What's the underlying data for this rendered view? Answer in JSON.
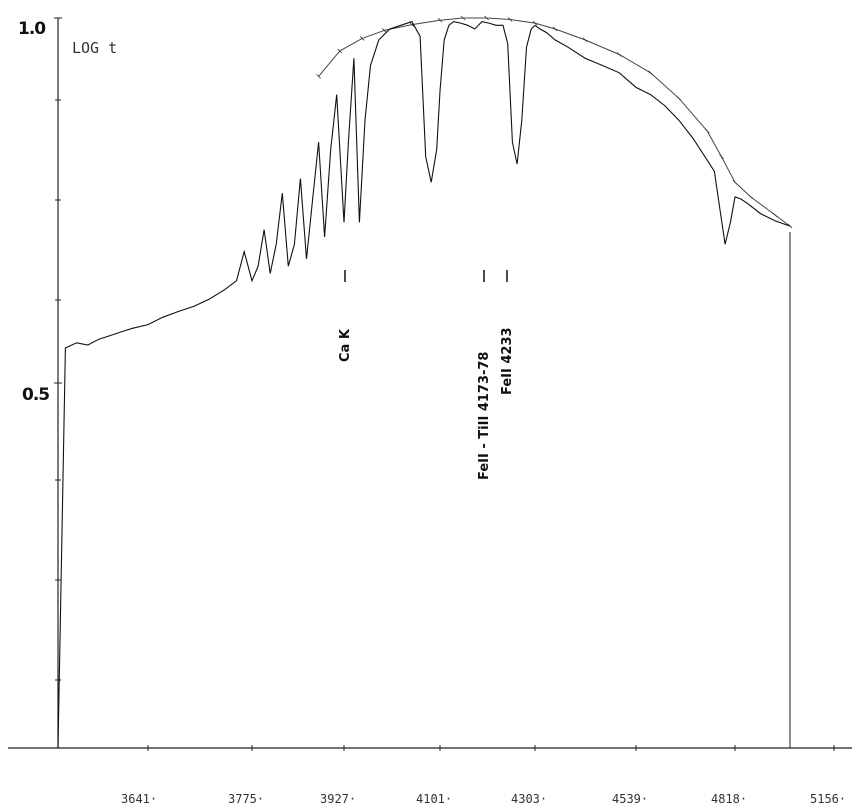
{
  "chart_data": {
    "type": "line",
    "title": "",
    "ylabel": "LOG t",
    "xlabel": "",
    "x_tick_labels": [
      "3641·",
      "3775·",
      "3927·",
      "4101·",
      "4303·",
      "4539·",
      "4818·",
      "5156·"
    ],
    "y_tick_labels": [
      "1.0",
      "0.5"
    ],
    "x_range": [
      3520,
      5156
    ],
    "y_range": [
      0.0,
      1.0
    ],
    "colors": {
      "line": "#222222",
      "axis": "#222222"
    },
    "series": [
      {
        "role": "spectrum",
        "x": [
          3520,
          3530,
          3545,
          3560,
          3575,
          3590,
          3605,
          3620,
          3641,
          3660,
          3680,
          3700,
          3720,
          3740,
          3755,
          3765,
          3775,
          3785,
          3795,
          3805,
          3815,
          3825,
          3835,
          3845,
          3855,
          3865,
          3875,
          3885,
          3895,
          3905,
          3915,
          3927,
          3935,
          3945,
          3955,
          3965,
          3975,
          3990,
          4010,
          4030,
          4050,
          4065,
          4075,
          4085,
          4095,
          4101,
          4110,
          4120,
          4130,
          4145,
          4160,
          4175,
          4190,
          4205,
          4220,
          4235,
          4245,
          4255,
          4265,
          4275,
          4285,
          4295,
          4303,
          4315,
          4330,
          4350,
          4380,
          4420,
          4460,
          4500,
          4539,
          4580,
          4620,
          4660,
          4700,
          4740,
          4760,
          4775,
          4790,
          4805,
          4818,
          4830,
          4845,
          4870,
          4900,
          4930
        ],
        "y": [
          0.0,
          0.548,
          0.555,
          0.552,
          0.56,
          0.565,
          0.57,
          0.575,
          0.58,
          0.59,
          0.598,
          0.605,
          0.615,
          0.628,
          0.64,
          0.68,
          0.64,
          0.66,
          0.71,
          0.65,
          0.69,
          0.76,
          0.66,
          0.69,
          0.78,
          0.67,
          0.75,
          0.83,
          0.7,
          0.82,
          0.895,
          0.72,
          0.83,
          0.945,
          0.72,
          0.86,
          0.935,
          0.97,
          0.985,
          0.99,
          0.995,
          0.975,
          0.81,
          0.775,
          0.82,
          0.9,
          0.97,
          0.99,
          0.995,
          0.993,
          0.99,
          0.985,
          0.995,
          0.993,
          0.99,
          0.99,
          0.965,
          0.83,
          0.8,
          0.86,
          0.96,
          0.985,
          0.99,
          0.985,
          0.98,
          0.97,
          0.96,
          0.945,
          0.935,
          0.925,
          0.905,
          0.895,
          0.88,
          0.86,
          0.835,
          0.805,
          0.79,
          0.74,
          0.69,
          0.72,
          0.755,
          0.752,
          0.745,
          0.732,
          0.722,
          0.715
        ]
      },
      {
        "role": "continuum",
        "x": [
          3885,
          3920,
          3960,
          4000,
          4050,
          4101,
          4150,
          4200,
          4250,
          4303,
          4350,
          4420,
          4500,
          4580,
          4660,
          4740,
          4780,
          4818,
          4850,
          4900,
          4930
        ],
        "y": [
          0.92,
          0.955,
          0.972,
          0.983,
          0.991,
          0.997,
          1.0,
          1.0,
          0.998,
          0.993,
          0.985,
          0.97,
          0.95,
          0.925,
          0.89,
          0.845,
          0.81,
          0.775,
          0.755,
          0.73,
          0.715
        ]
      }
    ],
    "annotations": [
      {
        "text": "Ca K",
        "x": 3927
      },
      {
        "text": "FeII - TiII 4173-78",
        "x": 4180
      },
      {
        "text": "FeII 4233",
        "x": 4233
      }
    ]
  }
}
